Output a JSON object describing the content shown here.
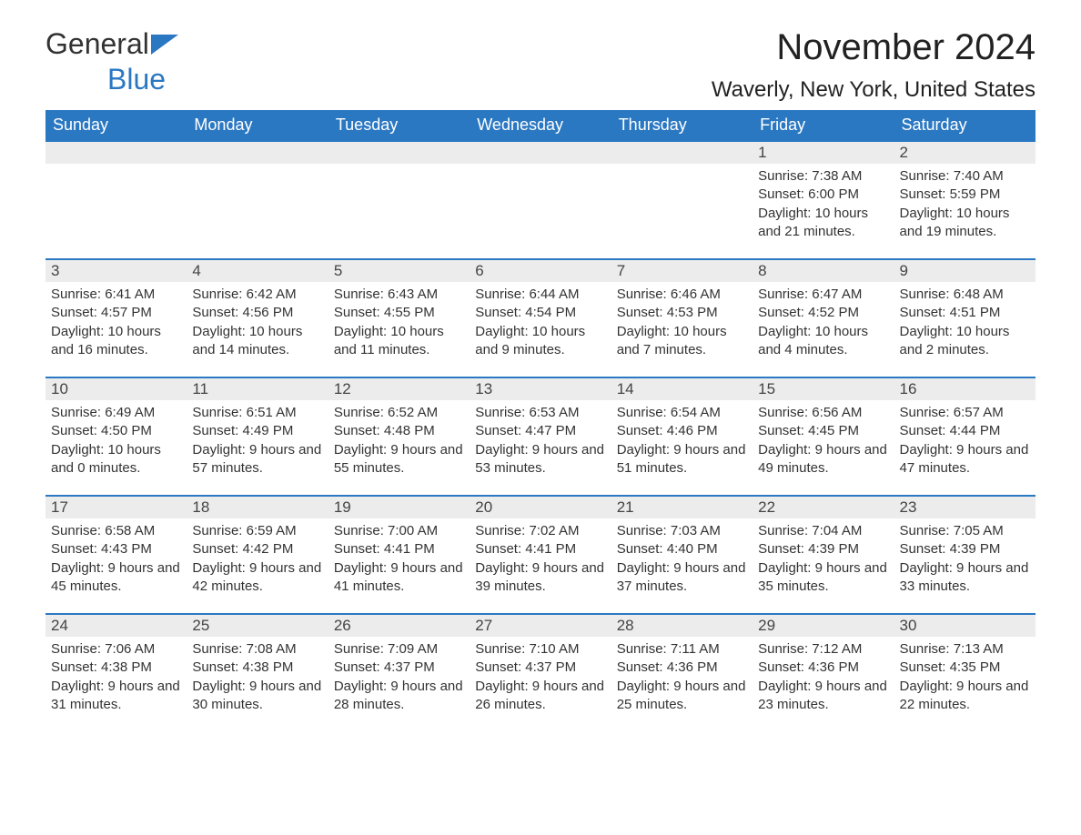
{
  "brand": {
    "part1": "General",
    "part2": "Blue"
  },
  "title": "November 2024",
  "location": "Waverly, New York, United States",
  "colors": {
    "header_bg": "#2b78c2",
    "header_text": "#ffffff",
    "daynum_bg": "#ececec",
    "row_border": "#2b78c2",
    "page_bg": "#ffffff",
    "text": "#333333"
  },
  "layout": {
    "columns": 7,
    "rows": 5,
    "first_weekday_index": 5
  },
  "weekdays": [
    "Sunday",
    "Monday",
    "Tuesday",
    "Wednesday",
    "Thursday",
    "Friday",
    "Saturday"
  ],
  "days": [
    {
      "n": 1,
      "sunrise": "7:38 AM",
      "sunset": "6:00 PM",
      "daylight": "10 hours and 21 minutes."
    },
    {
      "n": 2,
      "sunrise": "7:40 AM",
      "sunset": "5:59 PM",
      "daylight": "10 hours and 19 minutes."
    },
    {
      "n": 3,
      "sunrise": "6:41 AM",
      "sunset": "4:57 PM",
      "daylight": "10 hours and 16 minutes."
    },
    {
      "n": 4,
      "sunrise": "6:42 AM",
      "sunset": "4:56 PM",
      "daylight": "10 hours and 14 minutes."
    },
    {
      "n": 5,
      "sunrise": "6:43 AM",
      "sunset": "4:55 PM",
      "daylight": "10 hours and 11 minutes."
    },
    {
      "n": 6,
      "sunrise": "6:44 AM",
      "sunset": "4:54 PM",
      "daylight": "10 hours and 9 minutes."
    },
    {
      "n": 7,
      "sunrise": "6:46 AM",
      "sunset": "4:53 PM",
      "daylight": "10 hours and 7 minutes."
    },
    {
      "n": 8,
      "sunrise": "6:47 AM",
      "sunset": "4:52 PM",
      "daylight": "10 hours and 4 minutes."
    },
    {
      "n": 9,
      "sunrise": "6:48 AM",
      "sunset": "4:51 PM",
      "daylight": "10 hours and 2 minutes."
    },
    {
      "n": 10,
      "sunrise": "6:49 AM",
      "sunset": "4:50 PM",
      "daylight": "10 hours and 0 minutes."
    },
    {
      "n": 11,
      "sunrise": "6:51 AM",
      "sunset": "4:49 PM",
      "daylight": "9 hours and 57 minutes."
    },
    {
      "n": 12,
      "sunrise": "6:52 AM",
      "sunset": "4:48 PM",
      "daylight": "9 hours and 55 minutes."
    },
    {
      "n": 13,
      "sunrise": "6:53 AM",
      "sunset": "4:47 PM",
      "daylight": "9 hours and 53 minutes."
    },
    {
      "n": 14,
      "sunrise": "6:54 AM",
      "sunset": "4:46 PM",
      "daylight": "9 hours and 51 minutes."
    },
    {
      "n": 15,
      "sunrise": "6:56 AM",
      "sunset": "4:45 PM",
      "daylight": "9 hours and 49 minutes."
    },
    {
      "n": 16,
      "sunrise": "6:57 AM",
      "sunset": "4:44 PM",
      "daylight": "9 hours and 47 minutes."
    },
    {
      "n": 17,
      "sunrise": "6:58 AM",
      "sunset": "4:43 PM",
      "daylight": "9 hours and 45 minutes."
    },
    {
      "n": 18,
      "sunrise": "6:59 AM",
      "sunset": "4:42 PM",
      "daylight": "9 hours and 42 minutes."
    },
    {
      "n": 19,
      "sunrise": "7:00 AM",
      "sunset": "4:41 PM",
      "daylight": "9 hours and 41 minutes."
    },
    {
      "n": 20,
      "sunrise": "7:02 AM",
      "sunset": "4:41 PM",
      "daylight": "9 hours and 39 minutes."
    },
    {
      "n": 21,
      "sunrise": "7:03 AM",
      "sunset": "4:40 PM",
      "daylight": "9 hours and 37 minutes."
    },
    {
      "n": 22,
      "sunrise": "7:04 AM",
      "sunset": "4:39 PM",
      "daylight": "9 hours and 35 minutes."
    },
    {
      "n": 23,
      "sunrise": "7:05 AM",
      "sunset": "4:39 PM",
      "daylight": "9 hours and 33 minutes."
    },
    {
      "n": 24,
      "sunrise": "7:06 AM",
      "sunset": "4:38 PM",
      "daylight": "9 hours and 31 minutes."
    },
    {
      "n": 25,
      "sunrise": "7:08 AM",
      "sunset": "4:38 PM",
      "daylight": "9 hours and 30 minutes."
    },
    {
      "n": 26,
      "sunrise": "7:09 AM",
      "sunset": "4:37 PM",
      "daylight": "9 hours and 28 minutes."
    },
    {
      "n": 27,
      "sunrise": "7:10 AM",
      "sunset": "4:37 PM",
      "daylight": "9 hours and 26 minutes."
    },
    {
      "n": 28,
      "sunrise": "7:11 AM",
      "sunset": "4:36 PM",
      "daylight": "9 hours and 25 minutes."
    },
    {
      "n": 29,
      "sunrise": "7:12 AM",
      "sunset": "4:36 PM",
      "daylight": "9 hours and 23 minutes."
    },
    {
      "n": 30,
      "sunrise": "7:13 AM",
      "sunset": "4:35 PM",
      "daylight": "9 hours and 22 minutes."
    }
  ],
  "labels": {
    "sunrise": "Sunrise:",
    "sunset": "Sunset:",
    "daylight": "Daylight:"
  }
}
